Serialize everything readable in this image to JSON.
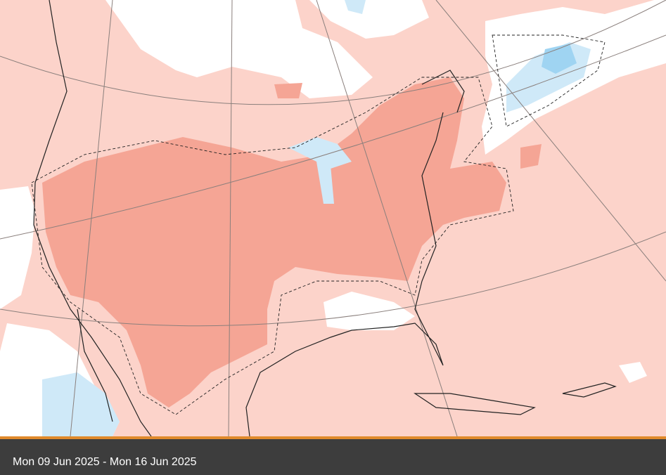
{
  "caption": "Mon 09 Jun 2025 - Mon 16 Jun 2025"
}
